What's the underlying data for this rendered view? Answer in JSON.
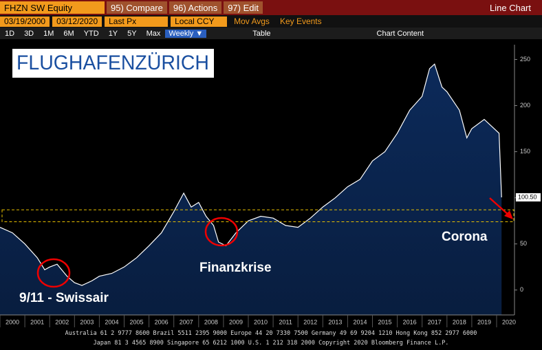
{
  "toolbar": {
    "ticker": "FHZN SW Equity",
    "compare": "95) Compare",
    "actions": "96) Actions",
    "edit": "97) Edit",
    "view": "Line Chart",
    "start_date": "03/19/2000",
    "end_date": "03/12/2020",
    "field": "Last Px",
    "currency": "Local CCY",
    "mov_avgs": "Mov Avgs",
    "key_events": "Key Events",
    "periods": [
      "1D",
      "3D",
      "1M",
      "6M",
      "YTD",
      "1Y",
      "5Y",
      "Max"
    ],
    "frequency": "Weekly ▼",
    "table": "Table",
    "chart_content": "Chart Content"
  },
  "logo": "FLUGHAFENZÜRICH",
  "chart_data": {
    "type": "line",
    "color": "#ffffff",
    "fill": "#0c2a5a",
    "x": [
      2000,
      2000.5,
      2001,
      2001.5,
      2001.8,
      2002,
      2002.3,
      2002.7,
      2003,
      2003.3,
      2003.7,
      2004,
      2004.5,
      2005,
      2005.5,
      2006,
      2006.5,
      2007,
      2007.4,
      2007.7,
      2008,
      2008.3,
      2008.6,
      2008.8,
      2009.1,
      2009.5,
      2010,
      2010.5,
      2011,
      2011.5,
      2012,
      2012.5,
      2013,
      2013.5,
      2014,
      2014.5,
      2015,
      2015.5,
      2016,
      2016.5,
      2017,
      2017.3,
      2017.5,
      2017.8,
      2018,
      2018.5,
      2018.8,
      2019,
      2019.5,
      2019.9,
      2020.1,
      2020.2
    ],
    "values": [
      68,
      62,
      50,
      35,
      22,
      25,
      28,
      15,
      8,
      5,
      10,
      15,
      18,
      25,
      35,
      48,
      62,
      85,
      105,
      90,
      95,
      80,
      70,
      52,
      48,
      62,
      75,
      80,
      78,
      70,
      68,
      78,
      90,
      100,
      112,
      120,
      140,
      150,
      170,
      195,
      210,
      240,
      245,
      220,
      215,
      195,
      165,
      175,
      185,
      175,
      170,
      100.5
    ],
    "last_price": {
      "value": 100.5,
      "label": "100.50"
    },
    "xlim": [
      2000,
      2020.72
    ],
    "xticks": [
      2000,
      2001,
      2002,
      2003,
      2004,
      2005,
      2006,
      2007,
      2008,
      2009,
      2010,
      2011,
      2012,
      2013,
      2014,
      2015,
      2016,
      2017,
      2018,
      2019,
      2020
    ],
    "ylim": [
      -27,
      266
    ],
    "yticks": [
      0,
      50,
      100,
      150,
      200,
      250
    ],
    "band": [
      74,
      87
    ],
    "annotations": [
      "9/11 - Swissair",
      "Finanzkrise",
      "Corona"
    ]
  },
  "footer": [
    "Australia 61 2 9777 8600 Brazil 5511 2395 9000 Europe 44 20 7330 7500 Germany 49 69 9204 1210 Hong Kong 852 2977 6000",
    "Japan 81 3 4565 8900        Singapore 65 6212 1000        U.S. 1 212 318 2000        Copyright 2020 Bloomberg Finance L.P."
  ]
}
